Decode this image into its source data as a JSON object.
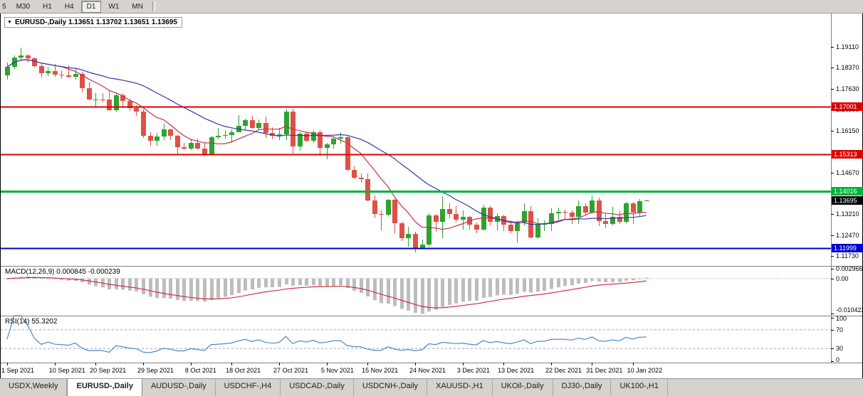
{
  "toolbar": {
    "periods": [
      {
        "label": "5",
        "cropped": true,
        "active": false
      },
      {
        "label": "M30",
        "active": false
      },
      {
        "label": "H1",
        "active": false
      },
      {
        "label": "H4",
        "active": false
      },
      {
        "label": "D1",
        "active": true
      },
      {
        "label": "W1",
        "active": false
      },
      {
        "label": "MN",
        "active": false
      }
    ]
  },
  "chart": {
    "dropdown_icon": "▼",
    "title": "EURUSD-,Daily 1.13651 1.13702 1.13651 1.13695"
  },
  "chart_data": {
    "type": "candlestick",
    "symbol": "EURUSD-",
    "timeframe": "Daily",
    "ohlc_display": {
      "open": "1.13651",
      "high": "1.13702",
      "low": "1.13651",
      "close": "1.13695"
    },
    "colors": {
      "up": "#2fa22f",
      "down": "#df5146",
      "ma_fast": "#c03448",
      "ma_slow": "#3038ae",
      "macd_hist": "#bdbdbd",
      "macd_signal": "#cc2233",
      "rsi": "#3d7fc4"
    },
    "candles": [
      [
        1.181,
        1.1857,
        1.1795,
        1.184
      ],
      [
        1.184,
        1.188,
        1.1832,
        1.1873
      ],
      [
        1.1873,
        1.1909,
        1.1865,
        1.188
      ],
      [
        1.188,
        1.1885,
        1.1857,
        1.187
      ],
      [
        1.187,
        1.1873,
        1.1837,
        1.1843
      ],
      [
        1.1843,
        1.1851,
        1.1802,
        1.1817
      ],
      [
        1.1817,
        1.1841,
        1.1809,
        1.1826
      ],
      [
        1.1826,
        1.1851,
        1.1805,
        1.1813
      ],
      [
        1.1813,
        1.1829,
        1.1797,
        1.181
      ],
      [
        1.181,
        1.1846,
        1.18,
        1.1805
      ],
      [
        1.1805,
        1.1832,
        1.1795,
        1.1816
      ],
      [
        1.1816,
        1.1823,
        1.175,
        1.1766
      ],
      [
        1.1766,
        1.1788,
        1.1724,
        1.1725
      ],
      [
        1.1725,
        1.1748,
        1.17,
        1.1726
      ],
      [
        1.1726,
        1.1749,
        1.1714,
        1.1725
      ],
      [
        1.1725,
        1.1756,
        1.1684,
        1.1687
      ],
      [
        1.1687,
        1.175,
        1.1683,
        1.174
      ],
      [
        1.174,
        1.1747,
        1.1701,
        1.172
      ],
      [
        1.172,
        1.1727,
        1.1685,
        1.1695
      ],
      [
        1.1695,
        1.1705,
        1.1667,
        1.1682
      ],
      [
        1.1682,
        1.169,
        1.1589,
        1.1598
      ],
      [
        1.1598,
        1.161,
        1.1562,
        1.158
      ],
      [
        1.158,
        1.1608,
        1.1563,
        1.1595
      ],
      [
        1.1595,
        1.164,
        1.1582,
        1.1621
      ],
      [
        1.1621,
        1.1622,
        1.1581,
        1.1598
      ],
      [
        1.1598,
        1.1602,
        1.1529,
        1.1557
      ],
      [
        1.1557,
        1.1573,
        1.1546,
        1.1552
      ],
      [
        1.1552,
        1.1586,
        1.1546,
        1.1573
      ],
      [
        1.1573,
        1.1586,
        1.1549,
        1.1553
      ],
      [
        1.1553,
        1.1571,
        1.1524,
        1.153
      ],
      [
        1.153,
        1.1597,
        1.1528,
        1.1592
      ],
      [
        1.1592,
        1.1624,
        1.1585,
        1.1596
      ],
      [
        1.1596,
        1.1618,
        1.1588,
        1.1601
      ],
      [
        1.1601,
        1.1621,
        1.1572,
        1.161
      ],
      [
        1.161,
        1.1669,
        1.1609,
        1.1633
      ],
      [
        1.1633,
        1.1658,
        1.1617,
        1.1652
      ],
      [
        1.1652,
        1.1667,
        1.1622,
        1.1624
      ],
      [
        1.1624,
        1.1656,
        1.162,
        1.1643
      ],
      [
        1.1643,
        1.1665,
        1.159,
        1.1608
      ],
      [
        1.1608,
        1.1627,
        1.1585,
        1.1596
      ],
      [
        1.1596,
        1.1626,
        1.1583,
        1.1603
      ],
      [
        1.1603,
        1.1692,
        1.1582,
        1.1682
      ],
      [
        1.1682,
        1.1692,
        1.1535,
        1.156
      ],
      [
        1.156,
        1.1609,
        1.1545,
        1.1606
      ],
      [
        1.1606,
        1.1612,
        1.1575,
        1.158
      ],
      [
        1.158,
        1.1616,
        1.1572,
        1.1611
      ],
      [
        1.1611,
        1.1617,
        1.1527,
        1.1554
      ],
      [
        1.1554,
        1.1573,
        1.1514,
        1.1567
      ],
      [
        1.1567,
        1.1595,
        1.1552,
        1.1588
      ],
      [
        1.1588,
        1.1609,
        1.157,
        1.1593
      ],
      [
        1.1593,
        1.1596,
        1.1475,
        1.1478
      ],
      [
        1.1478,
        1.1489,
        1.1443,
        1.1448
      ],
      [
        1.1448,
        1.1464,
        1.1432,
        1.1445
      ],
      [
        1.1445,
        1.1464,
        1.1366,
        1.1369
      ],
      [
        1.1369,
        1.1386,
        1.1309,
        1.132
      ],
      [
        1.132,
        1.1333,
        1.1263,
        1.1319
      ],
      [
        1.1319,
        1.1374,
        1.1314,
        1.1372
      ],
      [
        1.1372,
        1.1374,
        1.125,
        1.1289
      ],
      [
        1.1289,
        1.1293,
        1.1226,
        1.1237
      ],
      [
        1.1237,
        1.1275,
        1.1206,
        1.125
      ],
      [
        1.125,
        1.1258,
        1.1186,
        1.1199
      ],
      [
        1.1199,
        1.123,
        1.1196,
        1.1212
      ],
      [
        1.1212,
        1.1323,
        1.1206,
        1.1316
      ],
      [
        1.1316,
        1.1322,
        1.1258,
        1.1294
      ],
      [
        1.1294,
        1.1383,
        1.1235,
        1.1339
      ],
      [
        1.1339,
        1.136,
        1.1305,
        1.132
      ],
      [
        1.132,
        1.1348,
        1.129,
        1.1302
      ],
      [
        1.1302,
        1.1334,
        1.1267,
        1.1311
      ],
      [
        1.1311,
        1.1313,
        1.1267,
        1.1284
      ],
      [
        1.1284,
        1.129,
        1.1253,
        1.1266
      ],
      [
        1.1266,
        1.1354,
        1.1264,
        1.1343
      ],
      [
        1.1343,
        1.1348,
        1.128,
        1.1294
      ],
      [
        1.1294,
        1.1324,
        1.1264,
        1.1314
      ],
      [
        1.1314,
        1.1319,
        1.126,
        1.1284
      ],
      [
        1.1284,
        1.1298,
        1.1253,
        1.126
      ],
      [
        1.126,
        1.1298,
        1.1221,
        1.129
      ],
      [
        1.129,
        1.136,
        1.1282,
        1.1331
      ],
      [
        1.1331,
        1.135,
        1.1236,
        1.1239
      ],
      [
        1.1239,
        1.1305,
        1.1234,
        1.1285
      ],
      [
        1.1285,
        1.1298,
        1.1262,
        1.1287
      ],
      [
        1.1287,
        1.1342,
        1.1261,
        1.1324
      ],
      [
        1.1324,
        1.1344,
        1.1301,
        1.1328
      ],
      [
        1.1328,
        1.1336,
        1.1304,
        1.1327
      ],
      [
        1.1327,
        1.1334,
        1.1287,
        1.131
      ],
      [
        1.131,
        1.137,
        1.1286,
        1.1348
      ],
      [
        1.1348,
        1.136,
        1.1316,
        1.1325
      ],
      [
        1.1325,
        1.1386,
        1.132,
        1.137
      ],
      [
        1.137,
        1.1379,
        1.1279,
        1.1297
      ],
      [
        1.1297,
        1.1323,
        1.1272,
        1.1286
      ],
      [
        1.1286,
        1.1347,
        1.128,
        1.1312
      ],
      [
        1.1312,
        1.1332,
        1.1285,
        1.1294
      ],
      [
        1.1294,
        1.1364,
        1.1288,
        1.136
      ],
      [
        1.136,
        1.1363,
        1.1285,
        1.1327
      ],
      [
        1.1327,
        1.1374,
        1.1313,
        1.1366
      ],
      [
        1.13651,
        1.13702,
        1.13651,
        1.13695
      ]
    ],
    "date_ticks": [
      {
        "label": "1 Sep 2021",
        "i": 0
      },
      {
        "label": "10 Sep 2021",
        "i": 7
      },
      {
        "label": "20 Sep 2021",
        "i": 13
      },
      {
        "label": "29 Sep 2021",
        "i": 20
      },
      {
        "label": "8 Oct 2021",
        "i": 27
      },
      {
        "label": "18 Oct 2021",
        "i": 33
      },
      {
        "label": "27 Oct 2021",
        "i": 40
      },
      {
        "label": "5 Nov 2021",
        "i": 47
      },
      {
        "label": "15 Nov 2021",
        "i": 53
      },
      {
        "label": "24 Nov 2021",
        "i": 60
      },
      {
        "label": "3 Dec 2021",
        "i": 67
      },
      {
        "label": "13 Dec 2021",
        "i": 73
      },
      {
        "label": "22 Dec 2021",
        "i": 80
      },
      {
        "label": "31 Dec 2021",
        "i": 86
      },
      {
        "label": "10 Jan 2022",
        "i": 92
      }
    ],
    "price_ticks": [
      {
        "label": "1.19110",
        "value": 1.1911
      },
      {
        "label": "1.18370",
        "value": 1.1837
      },
      {
        "label": "1.17630",
        "value": 1.1763
      },
      {
        "label": "1.16890",
        "value": 1.1689
      },
      {
        "label": "1.16150",
        "value": 1.1615
      },
      {
        "label": "1.14670",
        "value": 1.1467
      },
      {
        "label": "1.13210",
        "value": 1.1321
      },
      {
        "label": "1.12470",
        "value": 1.1247
      },
      {
        "label": "1.11730",
        "value": 1.1173
      }
    ],
    "levels": [
      {
        "label": "1.17001",
        "value": 1.17001,
        "color": "#dd0000",
        "width": 2
      },
      {
        "label": "1.15313",
        "value": 1.15313,
        "color": "#dd0000",
        "width": 2
      },
      {
        "label": "1.14016",
        "value": 1.14016,
        "color": "#00b13c",
        "width": 3
      },
      {
        "label": "1.11999",
        "value": 1.11999,
        "color": "#0000cc",
        "width": 2
      }
    ],
    "current_price": {
      "label": "1.13695",
      "value": 1.13695,
      "color": "#000000"
    },
    "indicators": {
      "ma": [
        {
          "period": 8,
          "color_key": "ma_fast"
        },
        {
          "period": 21,
          "color_key": "ma_slow"
        }
      ],
      "macd": {
        "label": "MACD(12,26,9) 0.000845 -0.000239",
        "params": [
          12,
          26,
          9
        ],
        "axis": [
          {
            "label": "0.002966",
            "value": 0.002966
          },
          {
            "label": "0.00",
            "value": 0
          },
          {
            "label": "-0.010422",
            "value": -0.010422
          }
        ]
      },
      "rsi": {
        "label": "RSI(14) 55.3202",
        "period": 14,
        "value": 55.3202,
        "levels": [
          70,
          30
        ],
        "axis": [
          {
            "label": "100",
            "value": 100
          },
          {
            "label": "70",
            "value": 70
          },
          {
            "label": "30",
            "value": 30
          },
          {
            "label": "0",
            "value": 0
          }
        ]
      }
    }
  },
  "tabs": [
    {
      "label": "USDX,Weekly",
      "active": false
    },
    {
      "label": "EURUSD-,Daily",
      "active": true
    },
    {
      "label": "AUDUSD-,Daily",
      "active": false
    },
    {
      "label": "USDCHF-,H4",
      "active": false
    },
    {
      "label": "USDCAD-,Daily",
      "active": false
    },
    {
      "label": "USDCNH-,Daily",
      "active": false
    },
    {
      "label": "XAUUSD-,H1",
      "active": false
    },
    {
      "label": "UKOil-,Daily",
      "active": false
    },
    {
      "label": "DJ30-,Daily",
      "active": false
    },
    {
      "label": "UK100-,H1",
      "active": false
    }
  ]
}
